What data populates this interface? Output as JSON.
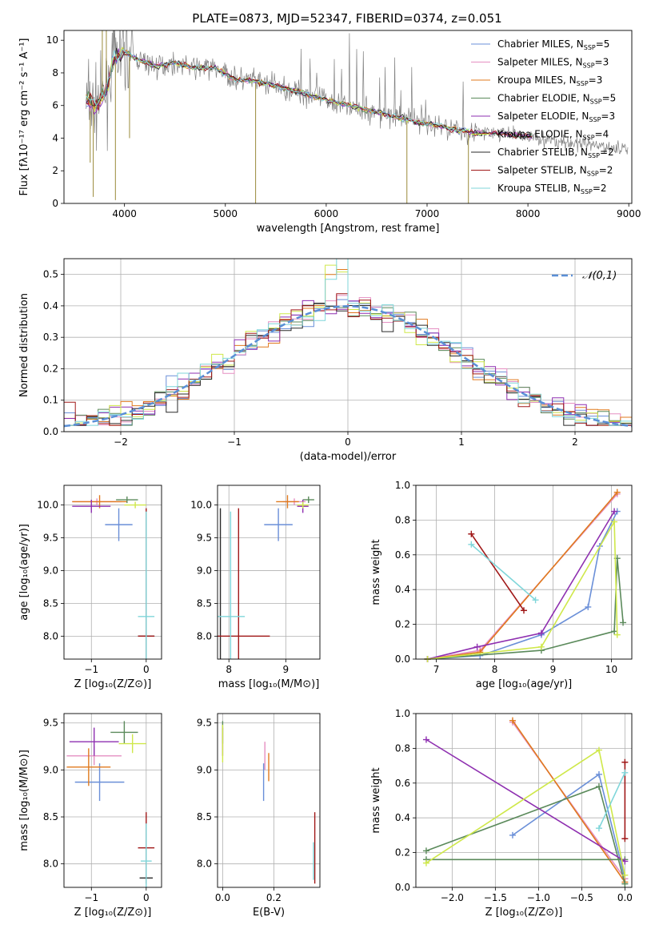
{
  "title": "PLATE=0873, MJD=52347, FIBERID=0374, z=0.051",
  "colors": {
    "Chabrier MILES": "#6a8fd8",
    "Salpeter MILES": "#e58fc2",
    "Kroupa MILES": "#e07a1e",
    "Chabrier ELODIE": "#5b8a5b",
    "Salpeter ELODIE": "#8e2fb0",
    "Kroupa ELODIE": "#cfe84a",
    "Chabrier STELIB": "#2a2a2a",
    "Salpeter STELIB": "#a01818",
    "Kroupa STELIB": "#7fd6da",
    "data": "#808080",
    "normal": "#5a8fd6"
  },
  "chart_data": [
    {
      "type": "line",
      "id": "spectrum",
      "xlabel": "wavelength [Angstrom, rest frame]",
      "ylabel": "Flux [fλ10⁻¹⁷ erg cm⁻² s⁻¹ A⁻¹]",
      "xlim": [
        3400,
        9030
      ],
      "ylim": [
        0,
        10.6
      ],
      "xticks": [
        4000,
        5000,
        6000,
        7000,
        8000,
        9000
      ],
      "yticks": [
        0,
        2,
        4,
        6,
        8,
        10
      ],
      "legend": [
        {
          "name": "Chabrier MILES",
          "nssp": "5"
        },
        {
          "name": "Salpeter MILES",
          "nssp": "3"
        },
        {
          "name": "Kroupa MILES",
          "nssp": "3"
        },
        {
          "name": "Chabrier ELODIE",
          "nssp": "5"
        },
        {
          "name": "Salpeter ELODIE",
          "nssp": "3"
        },
        {
          "name": "Kroupa ELODIE",
          "nssp": "4"
        },
        {
          "name": "Chabrier STELIB",
          "nssp": "2"
        },
        {
          "name": "Salpeter STELIB",
          "nssp": "2"
        },
        {
          "name": "Kroupa STELIB",
          "nssp": "2"
        }
      ],
      "legend_loc": "upper right",
      "model_continuum": [
        [
          3620,
          6.3
        ],
        [
          3700,
          6.0
        ],
        [
          3800,
          6.6
        ],
        [
          3900,
          8.9
        ],
        [
          4000,
          9.3
        ],
        [
          4100,
          8.9
        ],
        [
          4300,
          8.4
        ],
        [
          4500,
          8.6
        ],
        [
          4700,
          8.3
        ],
        [
          4900,
          8.3
        ],
        [
          5100,
          7.6
        ],
        [
          5300,
          7.5
        ],
        [
          5500,
          7.2
        ],
        [
          5700,
          6.9
        ],
        [
          5900,
          6.5
        ],
        [
          6100,
          6.2
        ],
        [
          6300,
          5.9
        ],
        [
          6500,
          5.6
        ],
        [
          6700,
          5.3
        ],
        [
          6900,
          5.0
        ],
        [
          7100,
          4.8
        ],
        [
          7300,
          4.5
        ],
        [
          7420,
          4.4
        ],
        [
          7500,
          4.3
        ],
        [
          7700,
          4.3
        ],
        [
          7900,
          4.2
        ],
        [
          8100,
          4.0
        ],
        [
          8300,
          3.8
        ],
        [
          8500,
          3.6
        ],
        [
          8700,
          3.5
        ],
        [
          8900,
          3.4
        ]
      ],
      "spikes": [
        [
          3910,
          0.2
        ],
        [
          5300,
          0.0
        ],
        [
          6800,
          0.0
        ],
        [
          7410,
          0.0
        ],
        [
          3690,
          0.4
        ],
        [
          3660,
          2.5
        ],
        [
          3780,
          10.6
        ],
        [
          3820,
          10.6
        ],
        [
          4050,
          4.0
        ]
      ]
    },
    {
      "type": "bar",
      "id": "residuals",
      "xlabel": "(data-model)/error",
      "ylabel": "Normed distribution",
      "xlim": [
        -2.5,
        2.5
      ],
      "ylim": [
        0,
        0.55
      ],
      "xticks": [
        -2,
        -1,
        0,
        1,
        2
      ],
      "yticks": [
        0.0,
        0.1,
        0.2,
        0.3,
        0.4,
        0.5
      ],
      "legend": "𝒩(0,1)",
      "legend_loc": "upper right",
      "bin_width": 0.1
    },
    {
      "type": "scatter",
      "id": "age-vs-Z",
      "xlabel": "Z [log₁₀(Z/Z⊙)]",
      "ylabel": "age  [log₁₀(age/yr)]",
      "xlim": [
        -1.5,
        0.28
      ],
      "ylim": [
        7.65,
        10.3
      ],
      "xticks": [
        -1,
        0
      ],
      "yticks": [
        8.0,
        8.5,
        9.0,
        9.5,
        10.0
      ],
      "points": [
        {
          "model": "Chabrier MILES",
          "x": -0.5,
          "xe": 0.25,
          "y": 9.7,
          "ye": 0.25
        },
        {
          "model": "Salpeter MILES",
          "x": -0.9,
          "xe": 0.45,
          "y": 10.05,
          "ye": 0.05
        },
        {
          "model": "Kroupa MILES",
          "x": -0.85,
          "xe": 0.5,
          "y": 10.05,
          "ye": 0.1
        },
        {
          "model": "Chabrier ELODIE",
          "x": -0.35,
          "xe": 0.2,
          "y": 10.08,
          "ye": 0.05
        },
        {
          "model": "Salpeter ELODIE",
          "x": -1.0,
          "xe": 0.35,
          "y": 9.98,
          "ye": 0.1
        },
        {
          "model": "Kroupa ELODIE",
          "x": -0.2,
          "xe": 0.2,
          "y": 10.0,
          "ye": 0.05
        },
        {
          "model": "Chabrier STELIB",
          "x": 0.0,
          "xe": 0.15,
          "y": 8.0,
          "ye": 0.0
        },
        {
          "model": "Salpeter STELIB",
          "x": 0.0,
          "xe": 0.15,
          "y": 8.0,
          "ye": 1.95
        },
        {
          "model": "Kroupa STELIB",
          "x": 0.0,
          "xe": 0.15,
          "y": 8.3,
          "ye": 1.6
        }
      ]
    },
    {
      "type": "scatter",
      "id": "age-vs-mass",
      "xlabel": "mass [log₁₀(M/M⊙)]",
      "ylabel": "",
      "xlim": [
        7.8,
        9.6
      ],
      "ylim": [
        7.65,
        10.3
      ],
      "xticks": [
        8,
        9
      ],
      "yticks": [
        8.0,
        8.5,
        9.0,
        9.5,
        10.0
      ],
      "points": [
        {
          "model": "Chabrier MILES",
          "x": 8.87,
          "xe": 0.25,
          "y": 9.7,
          "ye": 0.25
        },
        {
          "model": "Salpeter MILES",
          "x": 9.15,
          "xe": 0.2,
          "y": 10.05,
          "ye": 0.05
        },
        {
          "model": "Kroupa MILES",
          "x": 9.03,
          "xe": 0.2,
          "y": 10.05,
          "ye": 0.1
        },
        {
          "model": "Chabrier ELODIE",
          "x": 9.4,
          "xe": 0.1,
          "y": 10.08,
          "ye": 0.05
        },
        {
          "model": "Salpeter ELODIE",
          "x": 9.3,
          "xe": 0.1,
          "y": 9.98,
          "ye": 0.1
        },
        {
          "model": "Kroupa ELODIE",
          "x": 9.3,
          "xe": 0.1,
          "y": 10.0,
          "ye": 0.05
        },
        {
          "model": "Chabrier STELIB",
          "x": 7.85,
          "xe": 0.0,
          "y": 8.0,
          "ye": 1.95
        },
        {
          "model": "Salpeter STELIB",
          "x": 8.17,
          "xe": 0.55,
          "y": 8.0,
          "ye": 1.95
        },
        {
          "model": "Kroupa STELIB",
          "x": 8.03,
          "xe": 0.25,
          "y": 8.3,
          "ye": 1.6
        }
      ]
    },
    {
      "type": "line",
      "id": "weight-vs-age",
      "xlabel": "age  [log₁₀(age/yr)]",
      "ylabel": "mass weight",
      "xlim": [
        6.65,
        10.35
      ],
      "ylim": [
        0,
        1.0
      ],
      "xticks": [
        7,
        8,
        9,
        10
      ],
      "yticks": [
        0.0,
        0.2,
        0.4,
        0.6,
        0.8,
        1.0
      ],
      "series": [
        {
          "name": "Chabrier MILES",
          "x": [
            6.85,
            7.75,
            8.8,
            9.6,
            9.8,
            10.1
          ],
          "y": [
            0.0,
            0.02,
            0.14,
            0.3,
            0.65,
            0.85
          ]
        },
        {
          "name": "Salpeter MILES",
          "x": [
            6.85,
            7.75,
            10.1
          ],
          "y": [
            0.0,
            0.05,
            0.95
          ]
        },
        {
          "name": "Kroupa MILES",
          "x": [
            6.85,
            7.75,
            10.1
          ],
          "y": [
            0.0,
            0.04,
            0.96
          ]
        },
        {
          "name": "Chabrier ELODIE",
          "x": [
            6.85,
            8.8,
            10.05,
            10.1,
            10.2
          ],
          "y": [
            0.0,
            0.05,
            0.16,
            0.58,
            0.21
          ]
        },
        {
          "name": "Salpeter ELODIE",
          "x": [
            6.85,
            7.7,
            8.8,
            10.05
          ],
          "y": [
            0.0,
            0.07,
            0.15,
            0.85
          ]
        },
        {
          "name": "Kroupa ELODIE",
          "x": [
            6.85,
            8.8,
            10.05,
            10.1
          ],
          "y": [
            0.0,
            0.07,
            0.79,
            0.14
          ]
        },
        {
          "name": "Salpeter STELIB",
          "x": [
            7.6,
            8.5
          ],
          "y": [
            0.72,
            0.28
          ]
        },
        {
          "name": "Kroupa STELIB",
          "x": [
            7.6,
            8.7
          ],
          "y": [
            0.66,
            0.34
          ]
        }
      ]
    },
    {
      "type": "scatter",
      "id": "mass-vs-Z",
      "xlabel": "Z [log₁₀(Z/Z⊙)]",
      "ylabel": "mass [log₁₀(M/M⊙)]",
      "xlim": [
        -1.5,
        0.28
      ],
      "ylim": [
        7.75,
        9.6
      ],
      "xticks": [
        -1,
        0
      ],
      "yticks": [
        8.0,
        8.5,
        9.0,
        9.5
      ],
      "points": [
        {
          "model": "Chabrier MILES",
          "x": -0.85,
          "xe": 0.45,
          "y": 8.87,
          "ye": 0.2
        },
        {
          "model": "Salpeter MILES",
          "x": -0.95,
          "xe": 0.5,
          "y": 9.15,
          "ye": 0.1
        },
        {
          "model": "Kroupa MILES",
          "x": -1.05,
          "xe": 0.4,
          "y": 9.03,
          "ye": 0.2
        },
        {
          "model": "Chabrier ELODIE",
          "x": -0.4,
          "xe": 0.25,
          "y": 9.4,
          "ye": 0.12
        },
        {
          "model": "Salpeter ELODIE",
          "x": -0.95,
          "xe": 0.45,
          "y": 9.3,
          "ye": 0.15
        },
        {
          "model": "Kroupa ELODIE",
          "x": -0.25,
          "xe": 0.25,
          "y": 9.28,
          "ye": 0.1
        },
        {
          "model": "Chabrier STELIB",
          "x": 0.0,
          "xe": 0.12,
          "y": 7.85,
          "ye": 0.0
        },
        {
          "model": "Salpeter STELIB",
          "x": 0.0,
          "xe": 0.15,
          "y": 8.17,
          "ye": 0.38
        },
        {
          "model": "Kroupa STELIB",
          "x": 0.0,
          "xe": 0.1,
          "y": 8.03,
          "ye": 0.4
        }
      ]
    },
    {
      "type": "scatter",
      "id": "mass-vs-ebv",
      "xlabel": "E(B-V)",
      "ylabel": "",
      "xlim": [
        -0.02,
        0.38
      ],
      "ylim": [
        7.75,
        9.6
      ],
      "xticks": [
        0.0,
        0.2
      ],
      "yticks": [
        8.0,
        8.5,
        9.0,
        9.5
      ],
      "points": [
        {
          "model": "Chabrier MILES",
          "x": 0.16,
          "xe": 0,
          "y": 8.87,
          "ye": 0.2
        },
        {
          "model": "Salpeter MILES",
          "x": 0.165,
          "xe": 0,
          "y": 9.15,
          "ye": 0.15
        },
        {
          "model": "Kroupa MILES",
          "x": 0.18,
          "xe": 0,
          "y": 9.03,
          "ye": 0.15
        },
        {
          "model": "Chabrier ELODIE",
          "x": 0.0,
          "xe": 0,
          "y": 9.4,
          "ye": 0.12
        },
        {
          "model": "Salpeter ELODIE",
          "x": 0.0,
          "xe": 0,
          "y": 9.3,
          "ye": 0.15
        },
        {
          "model": "Kroupa ELODIE",
          "x": 0.0,
          "xe": 0,
          "y": 9.28,
          "ye": 0.2
        },
        {
          "model": "Chabrier STELIB",
          "x": 0.36,
          "xe": 0,
          "y": 7.85,
          "ye": 0.0
        },
        {
          "model": "Salpeter STELIB",
          "x": 0.36,
          "xe": 0,
          "y": 8.17,
          "ye": 0.38
        },
        {
          "model": "Kroupa STELIB",
          "x": 0.355,
          "xe": 0,
          "y": 8.03,
          "ye": 0.2
        }
      ]
    },
    {
      "type": "line",
      "id": "weight-vs-Z",
      "xlabel": "Z [log₁₀(Z/Z⊙)]",
      "ylabel": "mass weight",
      "xlim": [
        -2.42,
        0.08
      ],
      "ylim": [
        0,
        1.0
      ],
      "xticks": [
        -2.0,
        -1.5,
        -1.0,
        -0.5,
        0.0
      ],
      "yticks": [
        0.0,
        0.2,
        0.4,
        0.6,
        0.8,
        1.0
      ],
      "series": [
        {
          "name": "Chabrier MILES",
          "x": [
            -1.3,
            -0.3,
            0.0
          ],
          "y": [
            0.3,
            0.65,
            0.05
          ]
        },
        {
          "name": "Salpeter MILES",
          "x": [
            -1.3,
            0.0
          ],
          "y": [
            0.95,
            0.05
          ]
        },
        {
          "name": "Kroupa MILES",
          "x": [
            -1.3,
            0.0
          ],
          "y": [
            0.96,
            0.03
          ]
        },
        {
          "name": "Chabrier ELODIE",
          "x": [
            -2.3,
            -0.3,
            0.0
          ],
          "y": [
            0.21,
            0.58,
            0.02
          ]
        },
        {
          "name": "Chabrier ELODIE",
          "x": [
            -2.3,
            0.0
          ],
          "y": [
            0.16,
            0.16
          ]
        },
        {
          "name": "Salpeter ELODIE",
          "x": [
            -2.3,
            0.0
          ],
          "y": [
            0.85,
            0.15
          ]
        },
        {
          "name": "Kroupa ELODIE",
          "x": [
            -2.3,
            -0.3,
            0.0
          ],
          "y": [
            0.14,
            0.79,
            0.07
          ]
        },
        {
          "name": "Salpeter STELIB",
          "x": [
            0.0,
            0.0
          ],
          "y": [
            0.72,
            0.28
          ]
        },
        {
          "name": "Kroupa STELIB",
          "x": [
            -0.3,
            0.0
          ],
          "y": [
            0.34,
            0.66
          ]
        }
      ]
    }
  ]
}
